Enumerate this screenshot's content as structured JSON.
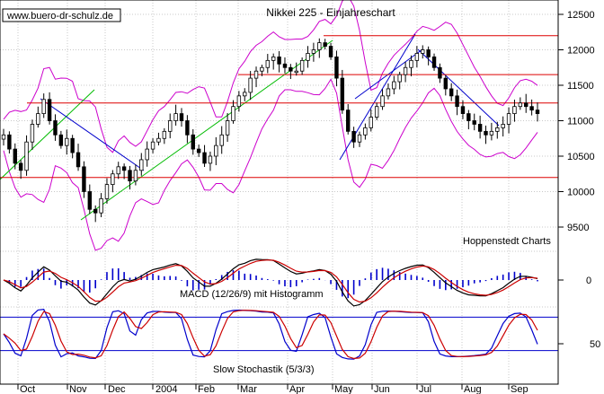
{
  "watermark": "www.buero-dr-schulz.de",
  "title": "Nikkei 225 - Einjahreschart",
  "source": "Hoppenstedt Charts",
  "chart_data": [
    {
      "type": "candlestick",
      "name": "price_panel",
      "ylim": [
        9300,
        12600
      ],
      "y_ticks": [
        "12500",
        "12000",
        "11500",
        "11000",
        "10500",
        "10000",
        "9500"
      ],
      "y_tick_values": [
        12500,
        12000,
        11500,
        11000,
        10500,
        10000,
        9500
      ],
      "x_months": [
        "Oct",
        "Nov",
        "Dec",
        "2004",
        "Feb",
        "Mar",
        "Apr",
        "May",
        "Jun",
        "Jul",
        "Aug",
        "Sep"
      ],
      "close_series": [
        10800,
        10600,
        10400,
        10300,
        10700,
        10950,
        11100,
        11300,
        11000,
        10800,
        10650,
        10750,
        10550,
        10350,
        10000,
        9750,
        9700,
        9900,
        10100,
        10250,
        10350,
        10300,
        10150,
        10300,
        10450,
        10600,
        10700,
        10750,
        10850,
        11000,
        11100,
        11000,
        10800,
        10600,
        10550,
        10400,
        10500,
        10650,
        10800,
        11000,
        11200,
        11350,
        11400,
        11600,
        11700,
        11750,
        11850,
        11900,
        11800,
        11750,
        11700,
        11700,
        11850,
        11950,
        12000,
        12100,
        12050,
        11900,
        11600,
        11150,
        10850,
        10700,
        10800,
        10900,
        11050,
        11200,
        11350,
        11450,
        11550,
        11650,
        11750,
        11850,
        11950,
        12000,
        11900,
        11750,
        11600,
        11450,
        11350,
        11200,
        11100,
        11000,
        10950,
        10850,
        10800,
        10850,
        10900,
        10950,
        11100,
        11200,
        11250,
        11200,
        11150,
        11100
      ],
      "resistance_lines": [
        12200,
        11650,
        11250,
        10200
      ],
      "indicators": [
        "Bollinger Bands",
        "Trend channels"
      ]
    },
    {
      "type": "line",
      "name": "macd_panel",
      "label": "MACD (12/26/9) mit Histogramm",
      "y_ticks": [
        "0"
      ],
      "y_tick_values": [
        0
      ],
      "series": [
        {
          "name": "MACD",
          "color": "#000000"
        },
        {
          "name": "Signal",
          "color": "#cc0000"
        },
        {
          "name": "Histogramm",
          "color": "#0000cc"
        }
      ]
    },
    {
      "type": "line",
      "name": "stochastic_panel",
      "label": "Slow Stochastik (5/3/3)",
      "y_ticks": [
        "50"
      ],
      "y_tick_values": [
        50
      ],
      "levels": [
        80,
        20
      ],
      "series": [
        {
          "name": "%K",
          "color": "#0000cc"
        },
        {
          "name": "%D",
          "color": "#cc0000"
        }
      ]
    }
  ]
}
